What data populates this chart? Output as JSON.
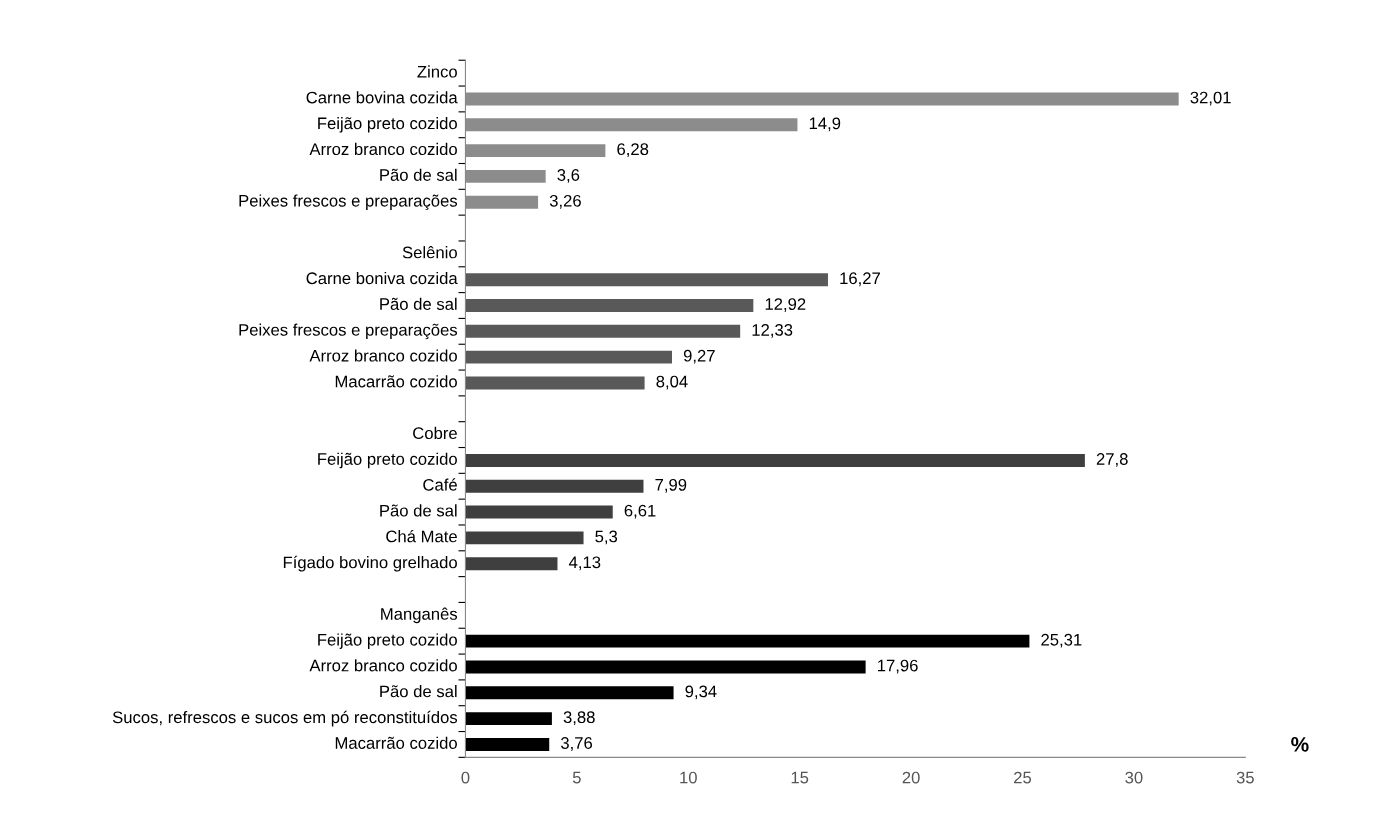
{
  "chart_data": {
    "type": "bar",
    "orientation": "horizontal",
    "xlabel": "%",
    "categories": [
      "Zinco",
      "Carne bovina cozida",
      "Feijão preto cozido",
      "Arroz branco cozido",
      "Pão de sal",
      "Peixes frescos e preparações",
      null,
      "Selênio",
      "Carne boniva cozida",
      "Pão de sal",
      "Peixes frescos e preparações",
      "Arroz branco cozido",
      "Macarrão cozido",
      null,
      "Cobre",
      "Feijão preto cozido",
      "Café",
      "Pão de sal",
      "Chá Mate",
      "Fígado bovino grelhado",
      null,
      "Manganês",
      "Feijão preto cozido",
      "Arroz branco cozido",
      "Pão de sal",
      "Sucos, refrescos e sucos em pó reconstituídos",
      "Macarrão cozido"
    ],
    "values": [
      null,
      32.01,
      14.9,
      6.28,
      3.6,
      3.26,
      null,
      null,
      16.27,
      12.92,
      12.33,
      9.27,
      8.04,
      null,
      null,
      27.8,
      7.99,
      6.61,
      5.3,
      4.13,
      null,
      null,
      25.31,
      17.96,
      9.34,
      3.88,
      3.76
    ],
    "value_labels": [
      null,
      "32,01",
      "14,9",
      "6,28",
      "3,6",
      "3,26",
      null,
      null,
      "16,27",
      "12,92",
      "12,33",
      "9,27",
      "8,04",
      null,
      null,
      "27,8",
      "7,99",
      "6,61",
      "5,3",
      "4,13",
      null,
      null,
      "25,31",
      "17,96",
      "9,34",
      "3,88",
      "3,76"
    ],
    "colors": [
      "#8c8c8c",
      "#8c8c8c",
      "#8c8c8c",
      "#8c8c8c",
      "#8c8c8c",
      "#8c8c8c",
      "#8c8c8c",
      "#595959",
      "#595959",
      "#595959",
      "#595959",
      "#595959",
      "#595959",
      "#595959",
      "#3f3f3f",
      "#3f3f3f",
      "#3f3f3f",
      "#3f3f3f",
      "#3f3f3f",
      "#3f3f3f",
      "#3f3f3f",
      "#000000",
      "#000000",
      "#000000",
      "#000000",
      "#000000",
      "#000000"
    ],
    "xlim": [
      0,
      35
    ],
    "xticks": [
      0,
      5,
      10,
      15,
      20,
      25,
      30,
      35
    ],
    "grid": false,
    "legend": false
  }
}
